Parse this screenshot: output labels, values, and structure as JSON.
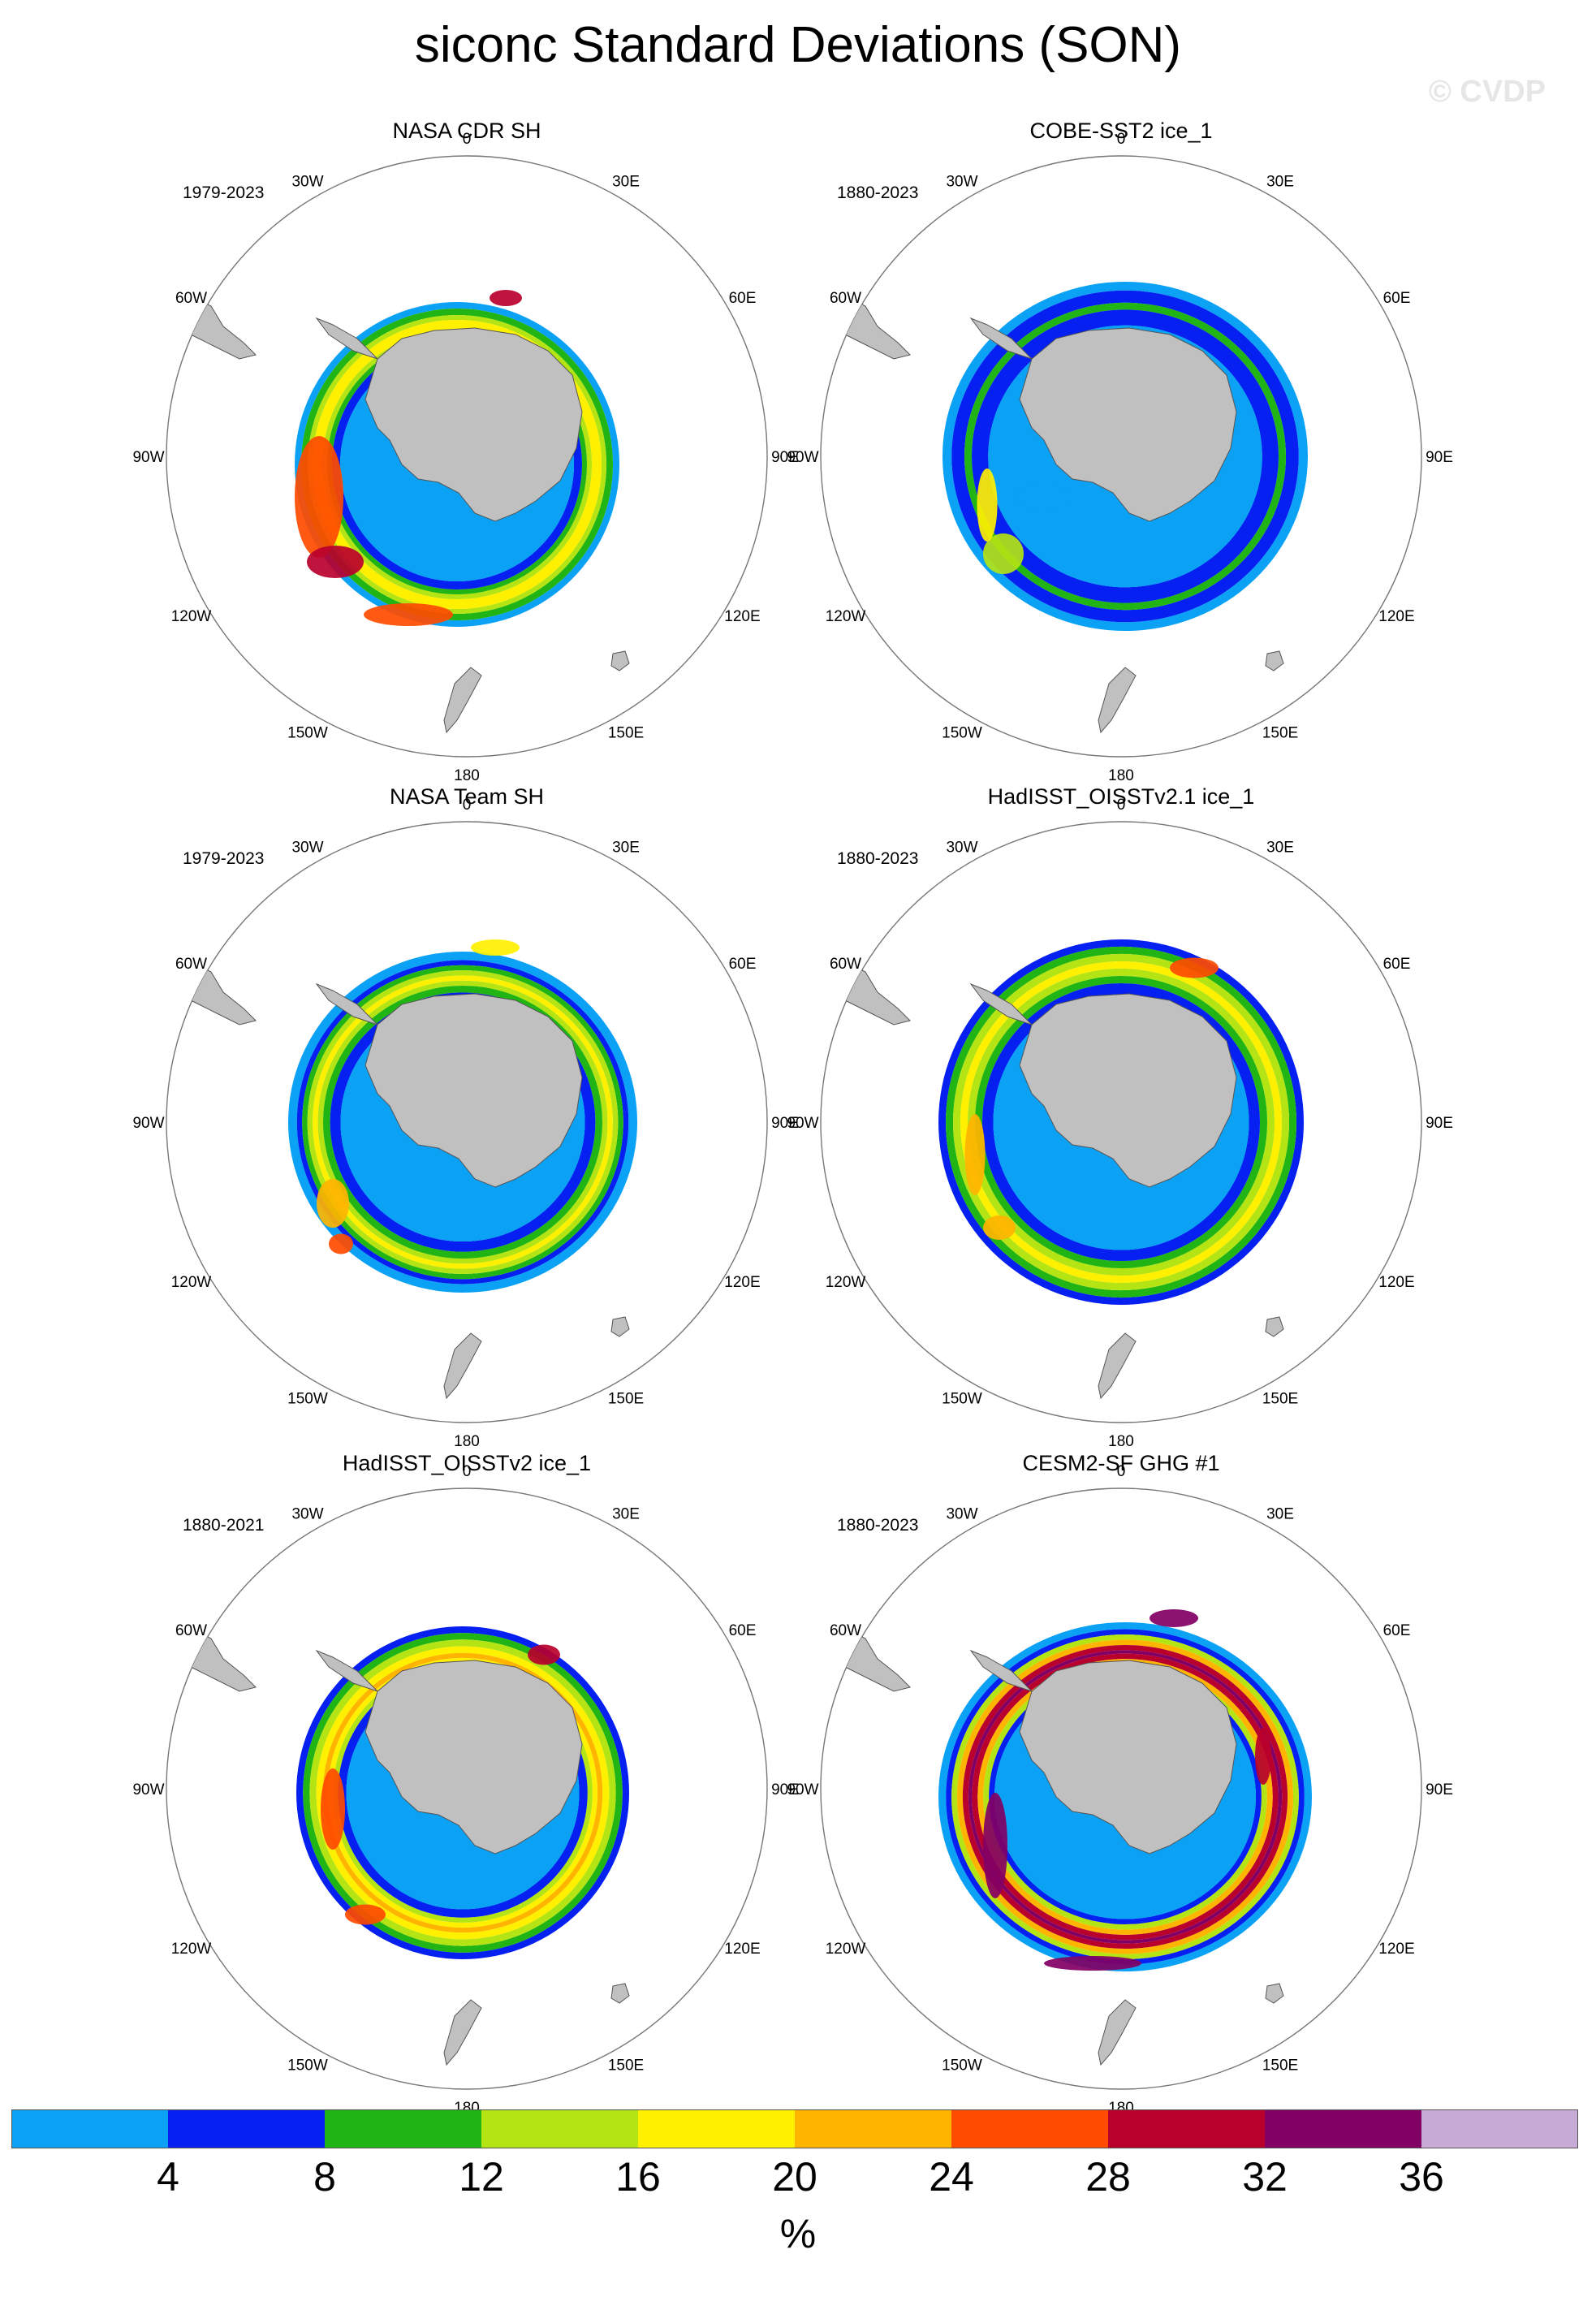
{
  "title": "siconc Standard Deviations (SON)",
  "watermark": "© CVDP",
  "lon_labels": [
    "0",
    "30E",
    "60E",
    "90E",
    "120E",
    "150E",
    "180",
    "150W",
    "120W",
    "90W",
    "60W",
    "30W"
  ],
  "panels": [
    {
      "title": "NASA CDR SH",
      "period": "1979-2023",
      "ring": "cdr"
    },
    {
      "title": "COBE-SST2 ice_1",
      "period": "1880-2023",
      "ring": "cobe"
    },
    {
      "title": "NASA Team SH",
      "period": "1979-2023",
      "ring": "team"
    },
    {
      "title": "HadISST_OISSTv2.1 ice_1",
      "period": "1880-2023",
      "ring": "had21"
    },
    {
      "title": "HadISST_OISSTv2 ice_1",
      "period": "1880-2021",
      "ring": "had2"
    },
    {
      "title": "CESM2-SF GHG #1",
      "period": "1880-2023",
      "ring": "cesm"
    }
  ],
  "colorbar": {
    "units": "%",
    "tick_labels": [
      "4",
      "8",
      "12",
      "16",
      "20",
      "24",
      "28",
      "32",
      "36"
    ],
    "colors": [
      "#0ba1f5",
      "#0520f0",
      "#20b414",
      "#b4e414",
      "#fff000",
      "#ffb400",
      "#ff4b00",
      "#b9002d",
      "#820064",
      "#c8aad7"
    ]
  },
  "land_color": "#c0c0c0"
}
